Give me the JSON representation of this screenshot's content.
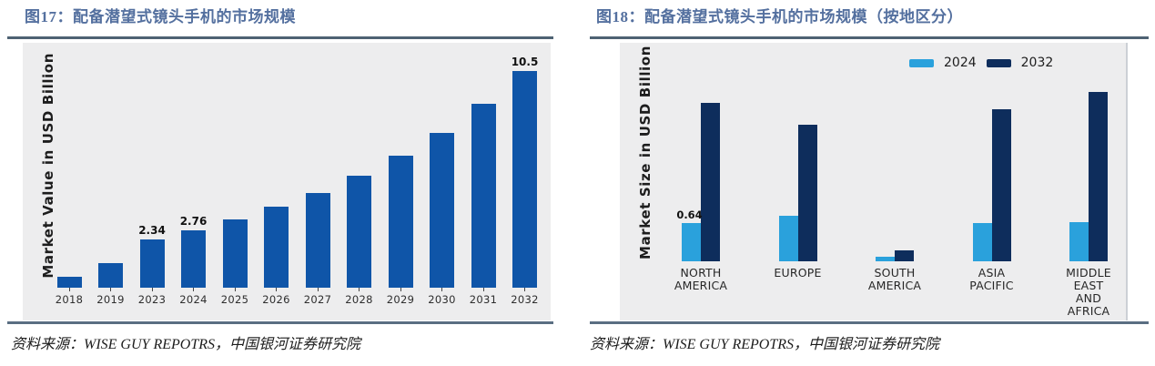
{
  "figures": [
    {
      "title": "图17：配备潜望式镜头手机的市场规模",
      "source": "资料来源：WISE GUY REPOTRS，中国银河证券研究院"
    },
    {
      "title": "图18：配备潜望式镜头手机的市场规模（按地区分）",
      "source": "资料来源：WISE GUY REPOTRS，中国银河证券研究院"
    }
  ],
  "colors": {
    "title_text": "#54709f",
    "rule": "#4e6273",
    "chart_background": "#ededee",
    "fig17_bar_blue": "#0f55a8",
    "fig18_light_blue": "#2aa1dc",
    "fig18_navy": "#0e2d5c"
  },
  "chart_data": [
    {
      "type": "bar",
      "title": "图17：配备潜望式镜头手机的市场规模",
      "xlabel": "",
      "ylabel": "Market Value in USD Billion",
      "categories": [
        "2018",
        "2019",
        "2023",
        "2024",
        "2025",
        "2026",
        "2027",
        "2028",
        "2029",
        "2030",
        "2031",
        "2032"
      ],
      "values": [
        0.55,
        1.2,
        2.34,
        2.76,
        3.3,
        3.9,
        4.6,
        5.4,
        6.4,
        7.5,
        8.9,
        10.5
      ],
      "data_labels": {
        "2023": "2.34",
        "2024": "2.76",
        "2032": "10.5"
      },
      "bar_color": "#0f55a8",
      "ylim": [
        0,
        11
      ],
      "grid": false,
      "legend_position": "none"
    },
    {
      "type": "bar",
      "title": "图18：配备潜望式镜头手机的市场规模（按地区分）",
      "xlabel": "",
      "ylabel": "Market Size in USD Billion",
      "categories": [
        "NORTH AMERICA",
        "EUROPE",
        "SOUTH AMERICA",
        "ASIA PACIFIC",
        "MIDDLE EAST AND AFRICA"
      ],
      "series": [
        {
          "name": "2024",
          "color": "#2aa1dc",
          "values": [
            0.64,
            0.76,
            0.07,
            0.64,
            0.66
          ]
        },
        {
          "name": "2032",
          "color": "#0e2d5c",
          "values": [
            2.65,
            2.28,
            0.18,
            2.55,
            2.84
          ]
        }
      ],
      "data_labels": [
        {
          "series": "2024",
          "category": "NORTH AMERICA",
          "text": "0.64"
        }
      ],
      "ylim": [
        0,
        3.2
      ],
      "grid": false,
      "legend_position": "top-right"
    }
  ]
}
